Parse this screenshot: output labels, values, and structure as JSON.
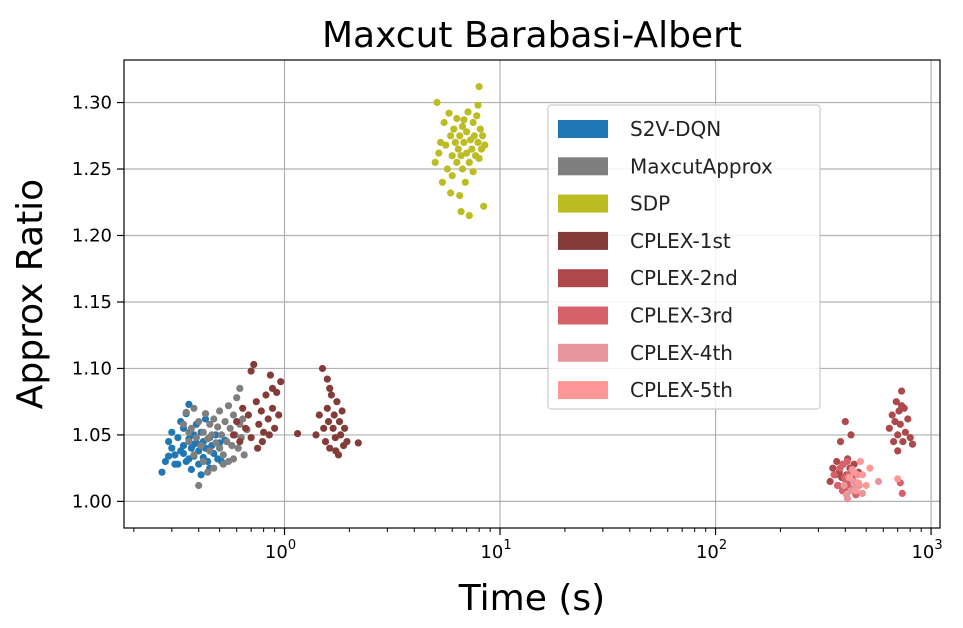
{
  "chart_data": {
    "type": "scatter",
    "title": "Maxcut Barabasi-Albert",
    "xlabel": "Time (s)",
    "ylabel": "Approx Ratio",
    "x_scale": "log",
    "xlim": [
      0.18,
      1100
    ],
    "ylim": [
      0.98,
      1.332
    ],
    "x_ticks": [
      {
        "value": 1,
        "base": "10",
        "exp": "0"
      },
      {
        "value": 10,
        "base": "10",
        "exp": "1"
      },
      {
        "value": 100,
        "base": "10",
        "exp": "2"
      },
      {
        "value": 1000,
        "base": "10",
        "exp": "3"
      }
    ],
    "y_ticks": [
      {
        "value": 1.0,
        "label": "1.00"
      },
      {
        "value": 1.05,
        "label": "1.05"
      },
      {
        "value": 1.1,
        "label": "1.10"
      },
      {
        "value": 1.15,
        "label": "1.15"
      },
      {
        "value": 1.2,
        "label": "1.20"
      },
      {
        "value": 1.25,
        "label": "1.25"
      },
      {
        "value": 1.3,
        "label": "1.30"
      }
    ],
    "grid": true,
    "legend_position": "top-right",
    "series": [
      {
        "name": "S2V-DQN",
        "color": "#1f77b4",
        "points": [
          [
            0.27,
            1.022
          ],
          [
            0.28,
            1.03
          ],
          [
            0.29,
            1.045
          ],
          [
            0.3,
            1.04
          ],
          [
            0.3,
            1.052
          ],
          [
            0.31,
            1.035
          ],
          [
            0.32,
            1.048
          ],
          [
            0.32,
            1.028
          ],
          [
            0.33,
            1.06
          ],
          [
            0.33,
            1.038
          ],
          [
            0.34,
            1.042
          ],
          [
            0.34,
            1.055
          ],
          [
            0.35,
            1.03
          ],
          [
            0.35,
            1.066
          ],
          [
            0.36,
            1.073
          ],
          [
            0.36,
            1.047
          ],
          [
            0.37,
            1.024
          ],
          [
            0.37,
            1.04
          ],
          [
            0.38,
            1.05
          ],
          [
            0.38,
            1.034
          ],
          [
            0.39,
            1.044
          ],
          [
            0.39,
            1.058
          ],
          [
            0.4,
            1.028
          ],
          [
            0.4,
            1.038
          ],
          [
            0.41,
            1.02
          ],
          [
            0.41,
            1.052
          ],
          [
            0.42,
            1.045
          ],
          [
            0.42,
            1.033
          ],
          [
            0.43,
            1.062
          ],
          [
            0.43,
            1.04
          ],
          [
            0.44,
            1.03
          ],
          [
            0.45,
            1.048
          ],
          [
            0.45,
            1.025
          ],
          [
            0.46,
            1.042
          ],
          [
            0.47,
            1.036
          ],
          [
            0.48,
            1.05
          ],
          [
            0.49,
            1.032
          ],
          [
            0.5,
            1.044
          ],
          [
            0.51,
            1.03
          ],
          [
            0.53,
            1.046
          ],
          [
            0.34,
            1.036
          ],
          [
            0.36,
            1.032
          ],
          [
            0.38,
            1.043
          ],
          [
            0.31,
            1.028
          ],
          [
            0.29,
            1.034
          ]
        ]
      },
      {
        "name": "MaxcutApprox",
        "color": "#7f7f7f",
        "points": [
          [
            0.34,
            1.058
          ],
          [
            0.35,
            1.067
          ],
          [
            0.36,
            1.045
          ],
          [
            0.37,
            1.055
          ],
          [
            0.38,
            1.07
          ],
          [
            0.38,
            1.035
          ],
          [
            0.39,
            1.048
          ],
          [
            0.4,
            1.012
          ],
          [
            0.4,
            1.06
          ],
          [
            0.41,
            1.042
          ],
          [
            0.42,
            1.052
          ],
          [
            0.42,
            1.03
          ],
          [
            0.43,
            1.066
          ],
          [
            0.44,
            1.047
          ],
          [
            0.45,
            1.038
          ],
          [
            0.45,
            1.058
          ],
          [
            0.46,
            1.05
          ],
          [
            0.47,
            1.062
          ],
          [
            0.47,
            1.025
          ],
          [
            0.48,
            1.044
          ],
          [
            0.49,
            1.056
          ],
          [
            0.5,
            1.04
          ],
          [
            0.5,
            1.068
          ],
          [
            0.51,
            1.05
          ],
          [
            0.52,
            1.035
          ],
          [
            0.53,
            1.06
          ],
          [
            0.54,
            1.045
          ],
          [
            0.55,
            1.03
          ],
          [
            0.55,
            1.072
          ],
          [
            0.56,
            1.055
          ],
          [
            0.57,
            1.042
          ],
          [
            0.58,
            1.065
          ],
          [
            0.59,
            1.05
          ],
          [
            0.6,
            1.078
          ],
          [
            0.61,
            1.04
          ],
          [
            0.62,
            1.058
          ],
          [
            0.63,
            1.048
          ],
          [
            0.64,
            1.062
          ],
          [
            0.65,
            1.035
          ],
          [
            0.67,
            1.054
          ],
          [
            0.44,
            1.022
          ],
          [
            0.52,
            1.028
          ],
          [
            0.58,
            1.032
          ],
          [
            0.62,
            1.085
          ],
          [
            0.36,
            1.052
          ]
        ]
      },
      {
        "name": "SDP",
        "color": "#bcbd22",
        "points": [
          [
            5.0,
            1.255
          ],
          [
            5.1,
            1.3
          ],
          [
            5.2,
            1.262
          ],
          [
            5.3,
            1.27
          ],
          [
            5.4,
            1.24
          ],
          [
            5.5,
            1.285
          ],
          [
            5.6,
            1.268
          ],
          [
            5.7,
            1.25
          ],
          [
            5.8,
            1.292
          ],
          [
            5.9,
            1.275
          ],
          [
            6.0,
            1.26
          ],
          [
            6.0,
            1.245
          ],
          [
            6.1,
            1.28
          ],
          [
            6.2,
            1.27
          ],
          [
            6.3,
            1.255
          ],
          [
            6.3,
            1.288
          ],
          [
            6.4,
            1.265
          ],
          [
            6.5,
            1.275
          ],
          [
            6.5,
            1.23
          ],
          [
            6.6,
            1.26
          ],
          [
            6.7,
            1.282
          ],
          [
            6.7,
            1.25
          ],
          [
            6.8,
            1.27
          ],
          [
            6.9,
            1.24
          ],
          [
            7.0,
            1.278
          ],
          [
            7.0,
            1.262
          ],
          [
            7.1,
            1.293
          ],
          [
            7.2,
            1.255
          ],
          [
            7.2,
            1.215
          ],
          [
            7.3,
            1.272
          ],
          [
            7.4,
            1.265
          ],
          [
            7.5,
            1.285
          ],
          [
            7.5,
            1.248
          ],
          [
            7.6,
            1.275
          ],
          [
            7.7,
            1.26
          ],
          [
            7.8,
            1.29
          ],
          [
            7.9,
            1.27
          ],
          [
            8.0,
            1.312
          ],
          [
            8.0,
            1.258
          ],
          [
            8.1,
            1.28
          ],
          [
            8.2,
            1.265
          ],
          [
            8.3,
            1.275
          ],
          [
            8.4,
            1.222
          ],
          [
            8.5,
            1.268
          ],
          [
            6.6,
            1.218
          ],
          [
            7.9,
            1.298
          ],
          [
            5.9,
            1.232
          ],
          [
            6.8,
            1.287
          ]
        ]
      },
      {
        "name": "CPLEX-1st",
        "color": "#843c39",
        "points": [
          [
            0.58,
            1.05
          ],
          [
            0.6,
            1.06
          ],
          [
            0.62,
            1.045
          ],
          [
            0.64,
            1.07
          ],
          [
            0.66,
            1.055
          ],
          [
            0.68,
            1.065
          ],
          [
            0.7,
            1.048
          ],
          [
            0.72,
            1.103
          ],
          [
            0.74,
            1.075
          ],
          [
            0.76,
            1.058
          ],
          [
            0.78,
            1.068
          ],
          [
            0.8,
            1.052
          ],
          [
            0.82,
            1.08
          ],
          [
            0.84,
            1.062
          ],
          [
            0.86,
            1.095
          ],
          [
            0.88,
            1.07
          ],
          [
            0.9,
            1.055
          ],
          [
            0.92,
            1.082
          ],
          [
            0.94,
            1.065
          ],
          [
            0.96,
            1.09
          ],
          [
            0.75,
            1.04
          ],
          [
            0.79,
            1.045
          ],
          [
            0.85,
            1.05
          ],
          [
            1.15,
            1.051
          ],
          [
            1.4,
            1.05
          ],
          [
            1.45,
            1.065
          ],
          [
            1.5,
            1.1
          ],
          [
            1.52,
            1.055
          ],
          [
            1.55,
            1.045
          ],
          [
            1.58,
            1.07
          ],
          [
            1.6,
            1.06
          ],
          [
            1.62,
            1.04
          ],
          [
            1.65,
            1.08
          ],
          [
            1.68,
            1.055
          ],
          [
            1.7,
            1.065
          ],
          [
            1.72,
            1.048
          ],
          [
            1.75,
            1.075
          ],
          [
            1.78,
            1.035
          ],
          [
            1.8,
            1.06
          ],
          [
            1.82,
            1.05
          ],
          [
            1.85,
            1.068
          ],
          [
            1.88,
            1.042
          ],
          [
            1.9,
            1.055
          ],
          [
            1.95,
            1.045
          ],
          [
            2.2,
            1.044
          ],
          [
            1.62,
            1.085
          ],
          [
            1.73,
            1.038
          ],
          [
            1.58,
            1.092
          ],
          [
            0.7,
            1.098
          ],
          [
            0.88,
            1.085
          ]
        ]
      },
      {
        "name": "CPLEX-2nd",
        "color": "#ad494a",
        "points": [
          [
            340,
            1.015
          ],
          [
            350,
            1.025
          ],
          [
            360,
            1.02
          ],
          [
            365,
            1.03
          ],
          [
            370,
            1.012
          ],
          [
            375,
            1.022
          ],
          [
            380,
            1.045
          ],
          [
            385,
            1.018
          ],
          [
            390,
            1.028
          ],
          [
            395,
            1.01
          ],
          [
            400,
            1.06
          ],
          [
            405,
            1.02
          ],
          [
            410,
            1.032
          ],
          [
            415,
            1.015
          ],
          [
            420,
            1.025
          ],
          [
            425,
            1.05
          ],
          [
            430,
            1.018
          ],
          [
            440,
            1.028
          ],
          [
            450,
            1.012
          ],
          [
            460,
            1.022
          ],
          [
            640,
            1.055
          ],
          [
            660,
            1.065
          ],
          [
            670,
            1.045
          ],
          [
            680,
            1.06
          ],
          [
            690,
            1.075
          ],
          [
            700,
            1.05
          ],
          [
            710,
            1.068
          ],
          [
            720,
            1.058
          ],
          [
            730,
            1.083
          ],
          [
            740,
            1.045
          ],
          [
            750,
            1.07
          ],
          [
            760,
            1.052
          ],
          [
            780,
            1.062
          ],
          [
            800,
            1.048
          ],
          [
            820,
            1.043
          ],
          [
            700,
            1.038
          ],
          [
            730,
            1.072
          ]
        ]
      },
      {
        "name": "CPLEX-3rd",
        "color": "#d6616b",
        "points": [
          [
            355,
            1.02
          ],
          [
            368,
            1.012
          ],
          [
            378,
            1.025
          ],
          [
            388,
            1.008
          ],
          [
            398,
            1.018
          ],
          [
            408,
            1.03
          ],
          [
            418,
            1.01
          ],
          [
            428,
            1.022
          ],
          [
            438,
            1.015
          ],
          [
            448,
            1.005
          ],
          [
            392,
            1.028
          ],
          [
            402,
            1.014
          ],
          [
            412,
            1.02
          ],
          [
            720,
            1.014
          ],
          [
            735,
            1.006
          ]
        ]
      },
      {
        "name": "CPLEX-4th",
        "color": "#e7969c",
        "points": [
          [
            395,
            1.012
          ],
          [
            405,
            1.005
          ],
          [
            415,
            1.018
          ],
          [
            425,
            1.008
          ],
          [
            435,
            1.015
          ],
          [
            445,
            1.01
          ],
          [
            455,
            1.02
          ],
          [
            465,
            1.012
          ],
          [
            480,
            1.006
          ],
          [
            410,
            1.002
          ],
          [
            430,
            1.024
          ],
          [
            570,
            1.015
          ]
        ]
      },
      {
        "name": "CPLEX-5th",
        "color": "#ff9896",
        "points": [
          [
            420,
            1.018
          ],
          [
            440,
            1.022
          ],
          [
            460,
            1.014
          ],
          [
            480,
            1.02
          ],
          [
            500,
            1.012
          ],
          [
            450,
            1.008
          ],
          [
            520,
            1.025
          ],
          [
            470,
            1.03
          ],
          [
            700,
            1.017
          ]
        ]
      }
    ]
  }
}
